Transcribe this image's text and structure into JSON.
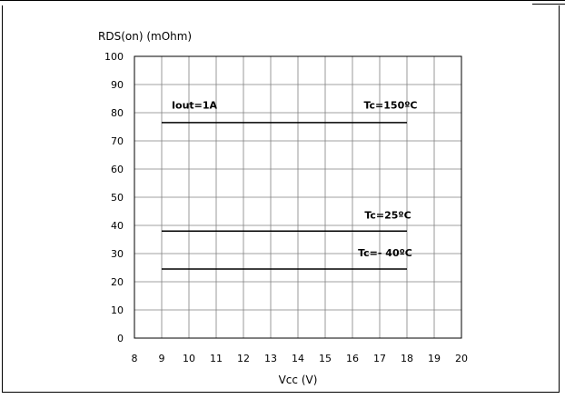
{
  "chart_data": {
    "type": "line",
    "title": "",
    "ylabel": "RDS(on) (mOhm)",
    "xlabel": "Vcc (V)",
    "xlim": [
      8,
      20
    ],
    "ylim": [
      0,
      100
    ],
    "xticks": [
      "8",
      "9",
      "10",
      "11",
      "12",
      "13",
      "14",
      "15",
      "16",
      "17",
      "18",
      "19",
      "20"
    ],
    "yticks": [
      "0",
      "10",
      "20",
      "30",
      "40",
      "50",
      "60",
      "70",
      "80",
      "90",
      "100"
    ],
    "grid": true,
    "series": [
      {
        "name": "Tc=150ºC",
        "x": [
          9,
          18
        ],
        "y": [
          76.5,
          76.5
        ],
        "color": "#000000"
      },
      {
        "name": "Tc=25ºC",
        "x": [
          9,
          18
        ],
        "y": [
          38,
          38
        ],
        "color": "#000000"
      },
      {
        "name": "Tc=- 40ºC",
        "x": [
          9,
          18
        ],
        "y": [
          24.5,
          24.5
        ],
        "color": "#000000"
      }
    ],
    "annotations": [
      {
        "text": "Iout=1A",
        "x": 10.2,
        "y": 81.5
      },
      {
        "text": "Tc=150ºC",
        "x": 17.4,
        "y": 81.5
      },
      {
        "text": "Tc=25ºC",
        "x": 17.3,
        "y": 42.5
      },
      {
        "text": "Tc=- 40ºC",
        "x": 17.2,
        "y": 29
      }
    ]
  }
}
